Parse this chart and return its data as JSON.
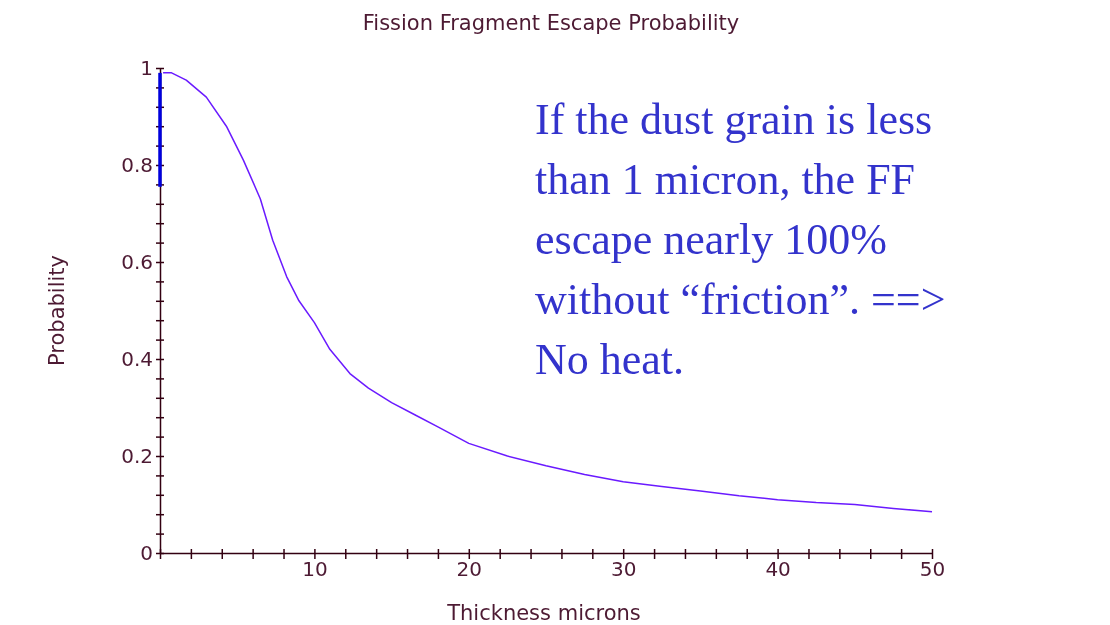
{
  "chart_data": {
    "type": "line",
    "title": "Fission Fragment Escape Probability",
    "xlabel": "Thickness microns",
    "ylabel": "Probability",
    "xlim": [
      0,
      50
    ],
    "ylim": [
      0,
      1
    ],
    "xticks": [
      {
        "value": 0,
        "label": null
      },
      {
        "value": 2,
        "label": null
      },
      {
        "value": 4,
        "label": null
      },
      {
        "value": 6,
        "label": null
      },
      {
        "value": 8,
        "label": null
      },
      10,
      {
        "value": 12,
        "label": null
      },
      {
        "value": 14,
        "label": null
      },
      {
        "value": 16,
        "label": null
      },
      {
        "value": 18,
        "label": null
      },
      20,
      {
        "value": 22,
        "label": null
      },
      {
        "value": 24,
        "label": null
      },
      {
        "value": 26,
        "label": null
      },
      {
        "value": 28,
        "label": null
      },
      30,
      {
        "value": 32,
        "label": null
      },
      {
        "value": 34,
        "label": null
      },
      {
        "value": 36,
        "label": null
      },
      {
        "value": 38,
        "label": null
      },
      40,
      {
        "value": 42,
        "label": null
      },
      {
        "value": 44,
        "label": null
      },
      {
        "value": 46,
        "label": null
      },
      {
        "value": 48,
        "label": null
      },
      50
    ],
    "yticks": [
      0,
      {
        "value": 0.04,
        "label": null
      },
      {
        "value": 0.08,
        "label": null
      },
      {
        "value": 0.12,
        "label": null
      },
      {
        "value": 0.16,
        "label": null
      },
      0.2,
      {
        "value": 0.24,
        "label": null
      },
      {
        "value": 0.28,
        "label": null
      },
      {
        "value": 0.32,
        "label": null
      },
      {
        "value": 0.36,
        "label": null
      },
      0.4,
      {
        "value": 0.44,
        "label": null
      },
      {
        "value": 0.48,
        "label": null
      },
      {
        "value": 0.52,
        "label": null
      },
      {
        "value": 0.56,
        "label": null
      },
      0.6,
      {
        "value": 0.64,
        "label": null
      },
      {
        "value": 0.68,
        "label": null
      },
      {
        "value": 0.72,
        "label": null
      },
      {
        "value": 0.76,
        "label": null
      },
      0.8,
      {
        "value": 0.84,
        "label": null
      },
      {
        "value": 0.88,
        "label": null
      },
      {
        "value": 0.92,
        "label": null
      },
      {
        "value": 0.96,
        "label": null
      },
      1
    ],
    "grid": false,
    "line_style": "solid",
    "marker": "none",
    "series": [
      {
        "color": "#6a1aff",
        "x": [
          0.2,
          0.75,
          1.7,
          3.0,
          4.3,
          5.4,
          6.5,
          7.3,
          8.2,
          9.0,
          10,
          11,
          12.3,
          13.5,
          15,
          16.5,
          18,
          20,
          22.5,
          25,
          27.5,
          30,
          32.5,
          35,
          37.5,
          40,
          42.5,
          45,
          47.5,
          50
        ],
        "values": [
          0.99,
          0.99,
          0.975,
          0.94,
          0.88,
          0.81,
          0.73,
          0.645,
          0.57,
          0.52,
          0.475,
          0.42,
          0.37,
          0.34,
          0.31,
          0.285,
          0.26,
          0.226,
          0.2,
          0.18,
          0.162,
          0.147,
          0.137,
          0.128,
          0.118,
          0.11,
          0.104,
          0.1,
          0.092,
          0.085
        ]
      },
      {
        "color": "#0000dd",
        "x": [
          0,
          0
        ],
        "values": [
          0.755,
          0.99
        ]
      }
    ],
    "annotations": [
      "If the dust grain is less than 1 micron, the FF escape nearly 100% without “friction”. ==> No heat."
    ]
  }
}
